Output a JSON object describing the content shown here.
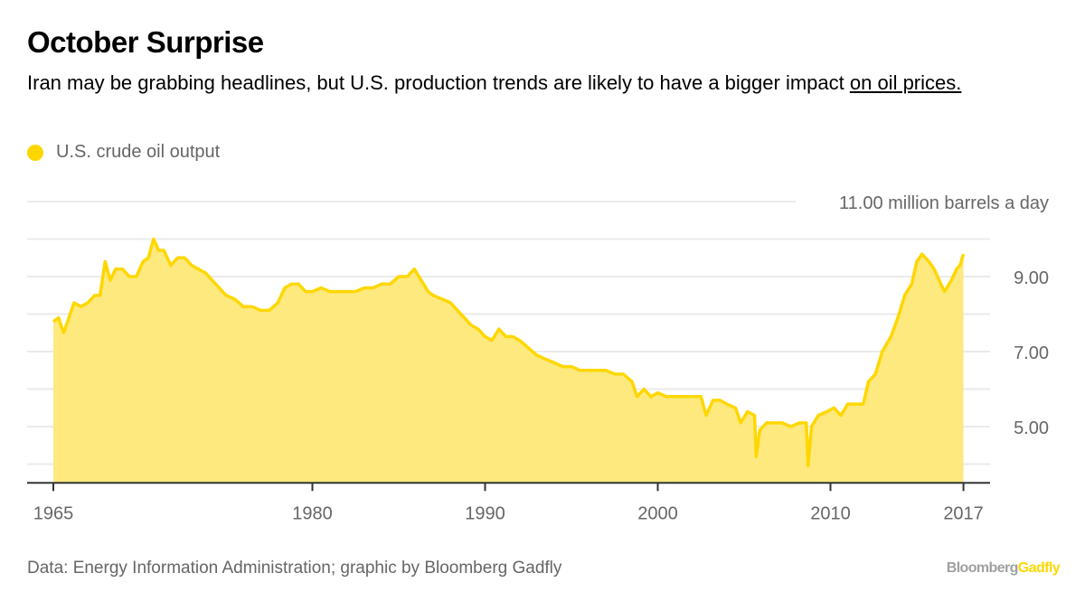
{
  "title": "October Surprise",
  "subtitle": {
    "text": "Iran may be grabbing headlines, but U.S. production trends are likely to have a bigger impact ",
    "link": "on oil prices."
  },
  "source": "Data: Energy Information Administration; graphic by Bloomberg Gadfly",
  "logo": {
    "part1": "Bloomberg",
    "part2": "Gadfly"
  },
  "colors": {
    "line": "#FFD700",
    "fill": "#FEE97F",
    "grid": "#ebebeb",
    "axis": "#333333",
    "text": "#666666"
  },
  "chart_data": {
    "type": "area",
    "title": "October Surprise",
    "legend": [
      {
        "name": "U.S. crude oil output",
        "color": "#FFD700"
      }
    ],
    "legend_placement": "top-left",
    "yunit": "million barrels a day",
    "ylim": [
      3.5,
      11
    ],
    "yticks": [
      {
        "value": 11,
        "label": "11.00 million barrels a day"
      },
      {
        "value": 10,
        "label": ""
      },
      {
        "value": 9,
        "label": "9.00"
      },
      {
        "value": 8,
        "label": ""
      },
      {
        "value": 7,
        "label": "7.00"
      },
      {
        "value": 6,
        "label": ""
      },
      {
        "value": 5,
        "label": "5.00"
      },
      {
        "value": 4,
        "label": ""
      }
    ],
    "xticks": [
      {
        "value": 1965,
        "label": "1965"
      },
      {
        "value": 1980,
        "label": "1980"
      },
      {
        "value": 1990,
        "label": "1990"
      },
      {
        "value": 2000,
        "label": "2000"
      },
      {
        "value": 2010,
        "label": "2010"
      },
      {
        "value": 2017.7,
        "label": "2017"
      }
    ],
    "grid": true,
    "series": [
      {
        "name": "U.S. crude oil output",
        "points": [
          [
            1965.0,
            7.8
          ],
          [
            1965.3,
            7.9
          ],
          [
            1965.6,
            7.5
          ],
          [
            1965.9,
            7.9
          ],
          [
            1966.2,
            8.3
          ],
          [
            1966.6,
            8.2
          ],
          [
            1967.0,
            8.3
          ],
          [
            1967.4,
            8.5
          ],
          [
            1967.7,
            8.5
          ],
          [
            1968.0,
            9.4
          ],
          [
            1968.3,
            8.9
          ],
          [
            1968.6,
            9.2
          ],
          [
            1969.0,
            9.2
          ],
          [
            1969.4,
            9.0
          ],
          [
            1969.8,
            9.0
          ],
          [
            1970.2,
            9.4
          ],
          [
            1970.5,
            9.5
          ],
          [
            1970.8,
            10.0
          ],
          [
            1971.1,
            9.7
          ],
          [
            1971.4,
            9.7
          ],
          [
            1971.8,
            9.3
          ],
          [
            1972.2,
            9.5
          ],
          [
            1972.6,
            9.5
          ],
          [
            1973.0,
            9.3
          ],
          [
            1973.4,
            9.2
          ],
          [
            1973.8,
            9.1
          ],
          [
            1974.2,
            8.9
          ],
          [
            1974.6,
            8.7
          ],
          [
            1975.0,
            8.5
          ],
          [
            1975.5,
            8.4
          ],
          [
            1976.0,
            8.2
          ],
          [
            1976.5,
            8.2
          ],
          [
            1977.0,
            8.1
          ],
          [
            1977.5,
            8.1
          ],
          [
            1978.0,
            8.3
          ],
          [
            1978.4,
            8.7
          ],
          [
            1978.8,
            8.8
          ],
          [
            1979.2,
            8.8
          ],
          [
            1979.6,
            8.6
          ],
          [
            1980.0,
            8.6
          ],
          [
            1980.5,
            8.7
          ],
          [
            1981.0,
            8.6
          ],
          [
            1981.5,
            8.6
          ],
          [
            1982.0,
            8.6
          ],
          [
            1982.5,
            8.6
          ],
          [
            1983.0,
            8.7
          ],
          [
            1983.5,
            8.7
          ],
          [
            1984.0,
            8.8
          ],
          [
            1984.5,
            8.8
          ],
          [
            1985.0,
            9.0
          ],
          [
            1985.5,
            9.0
          ],
          [
            1985.9,
            9.2
          ],
          [
            1986.3,
            8.9
          ],
          [
            1986.7,
            8.6
          ],
          [
            1987.0,
            8.5
          ],
          [
            1987.5,
            8.4
          ],
          [
            1988.0,
            8.3
          ],
          [
            1988.4,
            8.1
          ],
          [
            1988.8,
            7.9
          ],
          [
            1989.2,
            7.7
          ],
          [
            1989.6,
            7.6
          ],
          [
            1990.0,
            7.4
          ],
          [
            1990.4,
            7.3
          ],
          [
            1990.8,
            7.6
          ],
          [
            1991.2,
            7.4
          ],
          [
            1991.6,
            7.4
          ],
          [
            1992.0,
            7.3
          ],
          [
            1992.5,
            7.1
          ],
          [
            1993.0,
            6.9
          ],
          [
            1993.5,
            6.8
          ],
          [
            1994.0,
            6.7
          ],
          [
            1994.5,
            6.6
          ],
          [
            1995.0,
            6.6
          ],
          [
            1995.5,
            6.5
          ],
          [
            1996.0,
            6.5
          ],
          [
            1996.5,
            6.5
          ],
          [
            1997.0,
            6.5
          ],
          [
            1997.5,
            6.4
          ],
          [
            1998.0,
            6.4
          ],
          [
            1998.5,
            6.2
          ],
          [
            1998.8,
            5.8
          ],
          [
            1999.2,
            6.0
          ],
          [
            1999.6,
            5.8
          ],
          [
            2000.0,
            5.9
          ],
          [
            2000.5,
            5.8
          ],
          [
            2001.0,
            5.8
          ],
          [
            2001.5,
            5.8
          ],
          [
            2002.0,
            5.8
          ],
          [
            2002.5,
            5.8
          ],
          [
            2002.8,
            5.3
          ],
          [
            2003.2,
            5.7
          ],
          [
            2003.6,
            5.7
          ],
          [
            2004.0,
            5.6
          ],
          [
            2004.5,
            5.5
          ],
          [
            2004.8,
            5.1
          ],
          [
            2005.2,
            5.4
          ],
          [
            2005.6,
            5.3
          ],
          [
            2005.7,
            4.2
          ],
          [
            2005.9,
            4.9
          ],
          [
            2006.3,
            5.1
          ],
          [
            2006.8,
            5.1
          ],
          [
            2007.2,
            5.1
          ],
          [
            2007.7,
            5.0
          ],
          [
            2008.2,
            5.1
          ],
          [
            2008.6,
            5.1
          ],
          [
            2008.7,
            3.95
          ],
          [
            2008.9,
            5.0
          ],
          [
            2009.3,
            5.3
          ],
          [
            2009.8,
            5.4
          ],
          [
            2010.2,
            5.5
          ],
          [
            2010.6,
            5.3
          ],
          [
            2011.0,
            5.6
          ],
          [
            2011.5,
            5.6
          ],
          [
            2011.9,
            5.6
          ],
          [
            2012.2,
            6.2
          ],
          [
            2012.6,
            6.4
          ],
          [
            2013.0,
            7.0
          ],
          [
            2013.5,
            7.4
          ],
          [
            2013.9,
            7.9
          ],
          [
            2014.3,
            8.5
          ],
          [
            2014.7,
            8.8
          ],
          [
            2015.0,
            9.4
          ],
          [
            2015.3,
            9.6
          ],
          [
            2015.7,
            9.4
          ],
          [
            2016.0,
            9.2
          ],
          [
            2016.4,
            8.8
          ],
          [
            2016.6,
            8.6
          ],
          [
            2017.0,
            8.9
          ],
          [
            2017.3,
            9.2
          ],
          [
            2017.5,
            9.3
          ],
          [
            2017.7,
            9.6
          ]
        ]
      }
    ]
  }
}
